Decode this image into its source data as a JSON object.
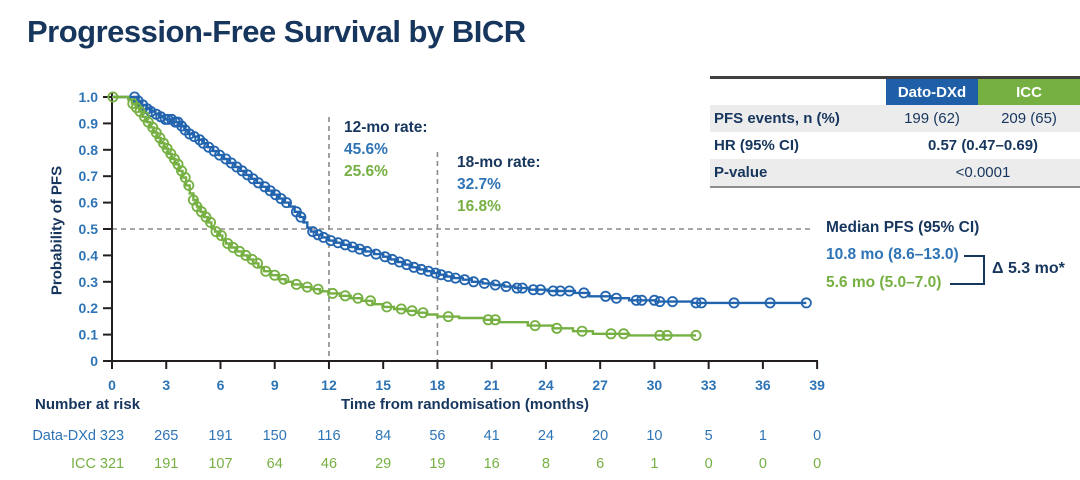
{
  "title": "Progression-Free Survival by BICR",
  "colors": {
    "navy": "#17365D",
    "blue_text": "#2E74B5",
    "blue_curve": "#2264AE",
    "blue_header": "#1F5FA8",
    "green": "#76B043",
    "gray_dash": "#8A8A8A",
    "row_bg": "#ECECEC"
  },
  "stats_table": {
    "columns": [
      "Dato-DXd",
      "ICC"
    ],
    "rows": [
      {
        "label": "PFS events, n (%)",
        "dato_dxd": "199 (62)",
        "icc": "209 (65)"
      },
      {
        "label": "HR (95% CI)",
        "value": "0.57 (0.47–0.69)"
      },
      {
        "label": "P-value",
        "value": "<0.0001"
      }
    ]
  },
  "median_box": {
    "header": "Median PFS (95% CI)",
    "dato_dxd": "10.8 mo (8.6–13.0)",
    "icc": "5.6 mo (5.0–7.0)",
    "delta": "Δ 5.3 mo*"
  },
  "chart_data": {
    "type": "line",
    "subtype": "kaplan_meier_survival",
    "title": "Progression-Free Survival by BICR",
    "xlabel": "Time from randomisation (months)",
    "ylabel": "Probability of PFS",
    "xlim": [
      0,
      39
    ],
    "ylim": [
      0,
      1.0
    ],
    "xticks": [
      0,
      3,
      6,
      9,
      12,
      15,
      18,
      21,
      24,
      27,
      30,
      33,
      36,
      39
    ],
    "ytick_labels": [
      "0",
      "0.1",
      "0.2",
      "0.3",
      "0.4",
      "0.5",
      "0.6",
      "0.7",
      "0.8",
      "0.9",
      "1.0"
    ],
    "grid": false,
    "reference_lines": {
      "horizontal_at": 0.5,
      "vertical_at": [
        12,
        18
      ]
    },
    "annotations": {
      "rate_12mo": {
        "label": "12-mo rate:",
        "dato_dxd": "45.6%",
        "icc": "25.6%"
      },
      "rate_18mo": {
        "label": "18-mo rate:",
        "dato_dxd": "32.7%",
        "icc": "16.8%"
      }
    },
    "series": [
      {
        "name": "Dato-DXd",
        "color_key": "blue_curve",
        "median_months": 10.8,
        "rate_12mo_pct": 45.6,
        "rate_18mo_pct": 32.7,
        "steps": [
          [
            0,
            1.0
          ],
          [
            1.4,
            0.985
          ],
          [
            1.6,
            0.97
          ],
          [
            1.9,
            0.955
          ],
          [
            2.1,
            0.945
          ],
          [
            2.4,
            0.935
          ],
          [
            2.6,
            0.925
          ],
          [
            2.9,
            0.915
          ],
          [
            3.4,
            0.905
          ],
          [
            3.8,
            0.89
          ],
          [
            4.0,
            0.875
          ],
          [
            4.2,
            0.86
          ],
          [
            4.5,
            0.85
          ],
          [
            4.8,
            0.838
          ],
          [
            5.0,
            0.825
          ],
          [
            5.3,
            0.81
          ],
          [
            5.6,
            0.795
          ],
          [
            5.9,
            0.78
          ],
          [
            6.2,
            0.765
          ],
          [
            6.5,
            0.75
          ],
          [
            6.8,
            0.735
          ],
          [
            7.1,
            0.72
          ],
          [
            7.4,
            0.705
          ],
          [
            7.7,
            0.69
          ],
          [
            8.0,
            0.675
          ],
          [
            8.3,
            0.66
          ],
          [
            8.6,
            0.645
          ],
          [
            8.9,
            0.63
          ],
          [
            9.2,
            0.615
          ],
          [
            9.5,
            0.6
          ],
          [
            9.8,
            0.585
          ],
          [
            10.1,
            0.565
          ],
          [
            10.4,
            0.545
          ],
          [
            10.6,
            0.525
          ],
          [
            10.8,
            0.505
          ],
          [
            11.0,
            0.49
          ],
          [
            11.3,
            0.478
          ],
          [
            11.6,
            0.468
          ],
          [
            12.0,
            0.456
          ],
          [
            12.4,
            0.448
          ],
          [
            12.8,
            0.44
          ],
          [
            13.2,
            0.432
          ],
          [
            13.6,
            0.424
          ],
          [
            14.0,
            0.415
          ],
          [
            14.5,
            0.405
          ],
          [
            15.0,
            0.395
          ],
          [
            15.4,
            0.385
          ],
          [
            15.8,
            0.375
          ],
          [
            16.2,
            0.365
          ],
          [
            16.6,
            0.355
          ],
          [
            17.0,
            0.347
          ],
          [
            17.4,
            0.34
          ],
          [
            17.8,
            0.333
          ],
          [
            18.1,
            0.327
          ],
          [
            18.5,
            0.32
          ],
          [
            18.9,
            0.314
          ],
          [
            19.4,
            0.308
          ],
          [
            19.9,
            0.3
          ],
          [
            20.5,
            0.294
          ],
          [
            21.1,
            0.288
          ],
          [
            21.7,
            0.282
          ],
          [
            22.3,
            0.276
          ],
          [
            23.1,
            0.27
          ],
          [
            24.1,
            0.265
          ],
          [
            25.6,
            0.258
          ],
          [
            26.4,
            0.245
          ],
          [
            27.6,
            0.238
          ],
          [
            28.6,
            0.23
          ],
          [
            30.1,
            0.225
          ],
          [
            32.1,
            0.22
          ],
          [
            38.4,
            0.22
          ]
        ],
        "censor_times": [
          1.25,
          1.45,
          1.7,
          1.95,
          2.15,
          2.45,
          2.7,
          2.95,
          3.1,
          3.3,
          3.5,
          3.65,
          3.85,
          4.05,
          4.3,
          4.55,
          4.85,
          5.05,
          5.35,
          5.65,
          5.95,
          6.3,
          6.6,
          6.9,
          7.2,
          7.5,
          7.8,
          8.1,
          8.45,
          8.75,
          9.05,
          9.35,
          9.65,
          10.2,
          10.45,
          11.1,
          11.4,
          11.7,
          12.1,
          12.5,
          12.9,
          13.3,
          13.7,
          14.1,
          14.6,
          15.1,
          15.5,
          15.9,
          16.3,
          16.7,
          17.1,
          17.5,
          17.9,
          18.2,
          18.6,
          19.0,
          19.5,
          20.0,
          20.6,
          21.2,
          21.8,
          22.4,
          22.7,
          23.3,
          23.7,
          24.4,
          24.8,
          25.3,
          26.1,
          27.3,
          27.9,
          29.0,
          29.3,
          30.0,
          30.3,
          31.0,
          32.3,
          32.6,
          34.4,
          36.4,
          38.4
        ]
      },
      {
        "name": "ICC",
        "color_key": "green",
        "median_months": 5.6,
        "rate_12mo_pct": 25.6,
        "rate_18mo_pct": 16.8,
        "steps": [
          [
            0,
            1.0
          ],
          [
            0.9,
            0.99
          ],
          [
            1.1,
            0.975
          ],
          [
            1.3,
            0.96
          ],
          [
            1.5,
            0.945
          ],
          [
            1.7,
            0.925
          ],
          [
            1.9,
            0.905
          ],
          [
            2.1,
            0.885
          ],
          [
            2.3,
            0.865
          ],
          [
            2.5,
            0.845
          ],
          [
            2.7,
            0.825
          ],
          [
            2.9,
            0.805
          ],
          [
            3.1,
            0.785
          ],
          [
            3.3,
            0.765
          ],
          [
            3.5,
            0.745
          ],
          [
            3.7,
            0.72
          ],
          [
            3.9,
            0.695
          ],
          [
            4.1,
            0.665
          ],
          [
            4.3,
            0.635
          ],
          [
            4.5,
            0.61
          ],
          [
            4.7,
            0.585
          ],
          [
            4.9,
            0.565
          ],
          [
            5.1,
            0.545
          ],
          [
            5.3,
            0.525
          ],
          [
            5.5,
            0.505
          ],
          [
            5.7,
            0.49
          ],
          [
            5.9,
            0.475
          ],
          [
            6.1,
            0.46
          ],
          [
            6.3,
            0.445
          ],
          [
            6.6,
            0.43
          ],
          [
            6.9,
            0.415
          ],
          [
            7.2,
            0.4
          ],
          [
            7.5,
            0.385
          ],
          [
            7.8,
            0.37
          ],
          [
            8.1,
            0.355
          ],
          [
            8.4,
            0.34
          ],
          [
            8.8,
            0.325
          ],
          [
            9.2,
            0.31
          ],
          [
            9.6,
            0.3
          ],
          [
            10.0,
            0.29
          ],
          [
            10.5,
            0.28
          ],
          [
            11.0,
            0.272
          ],
          [
            11.5,
            0.264
          ],
          [
            12.0,
            0.256
          ],
          [
            12.6,
            0.247
          ],
          [
            13.2,
            0.238
          ],
          [
            13.8,
            0.228
          ],
          [
            14.4,
            0.215
          ],
          [
            15.0,
            0.205
          ],
          [
            15.6,
            0.197
          ],
          [
            16.2,
            0.19
          ],
          [
            16.8,
            0.183
          ],
          [
            17.4,
            0.176
          ],
          [
            18.0,
            0.168
          ],
          [
            19.2,
            0.163
          ],
          [
            20.6,
            0.156
          ],
          [
            21.4,
            0.147
          ],
          [
            23.0,
            0.134
          ],
          [
            24.4,
            0.124
          ],
          [
            25.5,
            0.113
          ],
          [
            26.6,
            0.103
          ],
          [
            28.6,
            0.097
          ],
          [
            32.3,
            0.097
          ]
        ],
        "censor_times": [
          0.05,
          1.15,
          1.35,
          1.55,
          1.8,
          2.0,
          2.25,
          2.45,
          2.65,
          2.85,
          3.05,
          3.25,
          3.45,
          3.65,
          3.85,
          4.05,
          4.25,
          4.5,
          4.7,
          4.95,
          5.2,
          5.45,
          5.75,
          6.05,
          6.4,
          6.7,
          7.05,
          7.4,
          7.75,
          8.05,
          8.5,
          9.0,
          9.5,
          10.2,
          10.8,
          11.4,
          12.2,
          12.9,
          13.6,
          14.3,
          15.2,
          16.0,
          16.6,
          17.2,
          18.6,
          20.8,
          21.2,
          23.4,
          24.6,
          26.0,
          27.6,
          28.3,
          30.3,
          30.7,
          32.3
        ]
      }
    ],
    "number_at_risk": {
      "label": "Number at risk",
      "rows": [
        {
          "name": "Data-DXd",
          "color_key": "blue_text",
          "values": [
            323,
            265,
            191,
            150,
            116,
            84,
            56,
            41,
            24,
            20,
            10,
            5,
            1,
            0
          ]
        },
        {
          "name": "ICC",
          "color_key": "green",
          "values": [
            321,
            191,
            107,
            64,
            46,
            29,
            19,
            16,
            8,
            6,
            1,
            0,
            0,
            0
          ]
        }
      ]
    }
  }
}
